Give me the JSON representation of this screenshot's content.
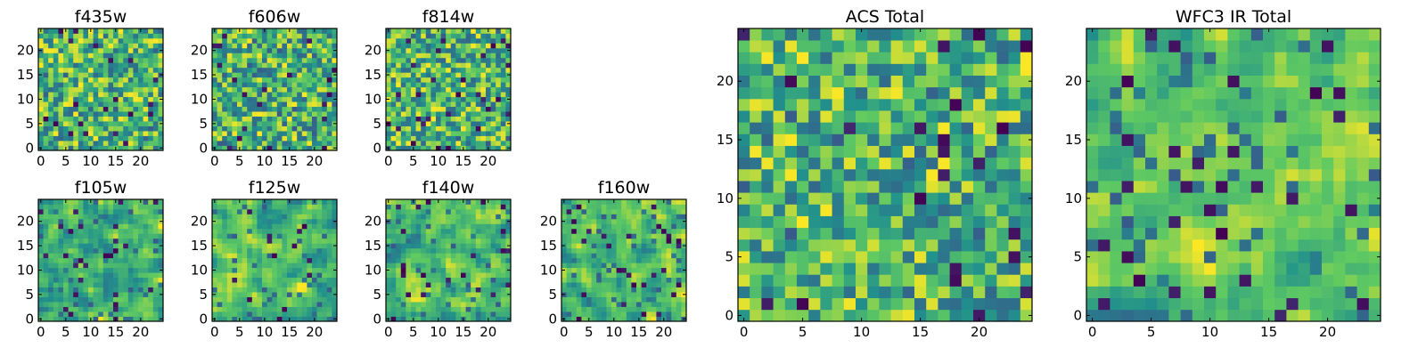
{
  "figure": {
    "background": "#ffffff",
    "colormap": "viridis",
    "colormap_stops": [
      "#440154",
      "#3b528b",
      "#21918c",
      "#5ec962",
      "#fde725"
    ]
  },
  "chart_data": [
    {
      "type": "heatmap",
      "title": "f435w",
      "grid": [
        25,
        25
      ],
      "xlim": [
        0,
        25
      ],
      "ylim": [
        0,
        25
      ],
      "xticks": [
        "0",
        "5",
        "10",
        "15",
        "20"
      ],
      "yticks": [
        "0",
        "5",
        "10",
        "15",
        "20"
      ],
      "seed": 11,
      "smooth": 0,
      "colormap": "viridis",
      "values_description": "per-pixel noise values in normalized colormap range"
    },
    {
      "type": "heatmap",
      "title": "f606w",
      "grid": [
        25,
        25
      ],
      "xlim": [
        0,
        25
      ],
      "ylim": [
        0,
        25
      ],
      "xticks": [
        "0",
        "5",
        "10",
        "15",
        "20"
      ],
      "yticks": [
        "0",
        "5",
        "10",
        "15",
        "20"
      ],
      "seed": 23,
      "smooth": 0,
      "colormap": "viridis",
      "values_description": "per-pixel noise values in normalized colormap range"
    },
    {
      "type": "heatmap",
      "title": "f814w",
      "grid": [
        25,
        25
      ],
      "xlim": [
        0,
        25
      ],
      "ylim": [
        0,
        25
      ],
      "xticks": [
        "0",
        "5",
        "10",
        "15",
        "20"
      ],
      "yticks": [
        "0",
        "5",
        "10",
        "15",
        "20"
      ],
      "seed": 37,
      "smooth": 0,
      "colormap": "viridis",
      "values_description": "per-pixel noise values in normalized colormap range"
    },
    {
      "type": "heatmap",
      "title": "f105w",
      "grid": [
        25,
        25
      ],
      "xlim": [
        0,
        25
      ],
      "ylim": [
        0,
        25
      ],
      "xticks": [
        "0",
        "5",
        "10",
        "15",
        "20"
      ],
      "yticks": [
        "0",
        "5",
        "10",
        "15",
        "20"
      ],
      "seed": 41,
      "smooth": 1,
      "colormap": "viridis",
      "values_description": "per-pixel noise values in normalized colormap range"
    },
    {
      "type": "heatmap",
      "title": "f125w",
      "grid": [
        25,
        25
      ],
      "xlim": [
        0,
        25
      ],
      "ylim": [
        0,
        25
      ],
      "xticks": [
        "0",
        "5",
        "10",
        "15",
        "20"
      ],
      "yticks": [
        "0",
        "5",
        "10",
        "15",
        "20"
      ],
      "seed": 53,
      "smooth": 1,
      "colormap": "viridis",
      "values_description": "per-pixel noise values in normalized colormap range"
    },
    {
      "type": "heatmap",
      "title": "f140w",
      "grid": [
        25,
        25
      ],
      "xlim": [
        0,
        25
      ],
      "ylim": [
        0,
        25
      ],
      "xticks": [
        "0",
        "5",
        "10",
        "15",
        "20"
      ],
      "yticks": [
        "0",
        "5",
        "10",
        "15",
        "20"
      ],
      "seed": 67,
      "smooth": 1,
      "colormap": "viridis",
      "values_description": "per-pixel noise values in normalized colormap range"
    },
    {
      "type": "heatmap",
      "title": "f160w",
      "grid": [
        25,
        25
      ],
      "xlim": [
        0,
        25
      ],
      "ylim": [
        0,
        25
      ],
      "xticks": [
        "0",
        "5",
        "10",
        "15",
        "20"
      ],
      "yticks": [
        "0",
        "5",
        "10",
        "15",
        "20"
      ],
      "seed": 79,
      "smooth": 1,
      "colormap": "viridis",
      "values_description": "per-pixel noise values in normalized colormap range"
    },
    {
      "type": "heatmap",
      "title": "ACS Total",
      "grid": [
        25,
        25
      ],
      "xlim": [
        0,
        25
      ],
      "ylim": [
        0,
        25
      ],
      "xticks": [
        "0",
        "5",
        "10",
        "15",
        "20"
      ],
      "yticks": [
        "0",
        "5",
        "10",
        "15",
        "20"
      ],
      "seed": 83,
      "smooth": 0,
      "colormap": "viridis",
      "values_description": "per-pixel noise values in normalized colormap range"
    },
    {
      "type": "heatmap",
      "title": "WFC3 IR Total",
      "grid": [
        25,
        25
      ],
      "xlim": [
        0,
        25
      ],
      "ylim": [
        0,
        25
      ],
      "xticks": [
        "0",
        "5",
        "10",
        "15",
        "20"
      ],
      "yticks": [
        "0",
        "5",
        "10",
        "15",
        "20"
      ],
      "seed": 97,
      "smooth": 1,
      "colormap": "viridis",
      "values_description": "per-pixel noise values in normalized colormap range"
    }
  ]
}
